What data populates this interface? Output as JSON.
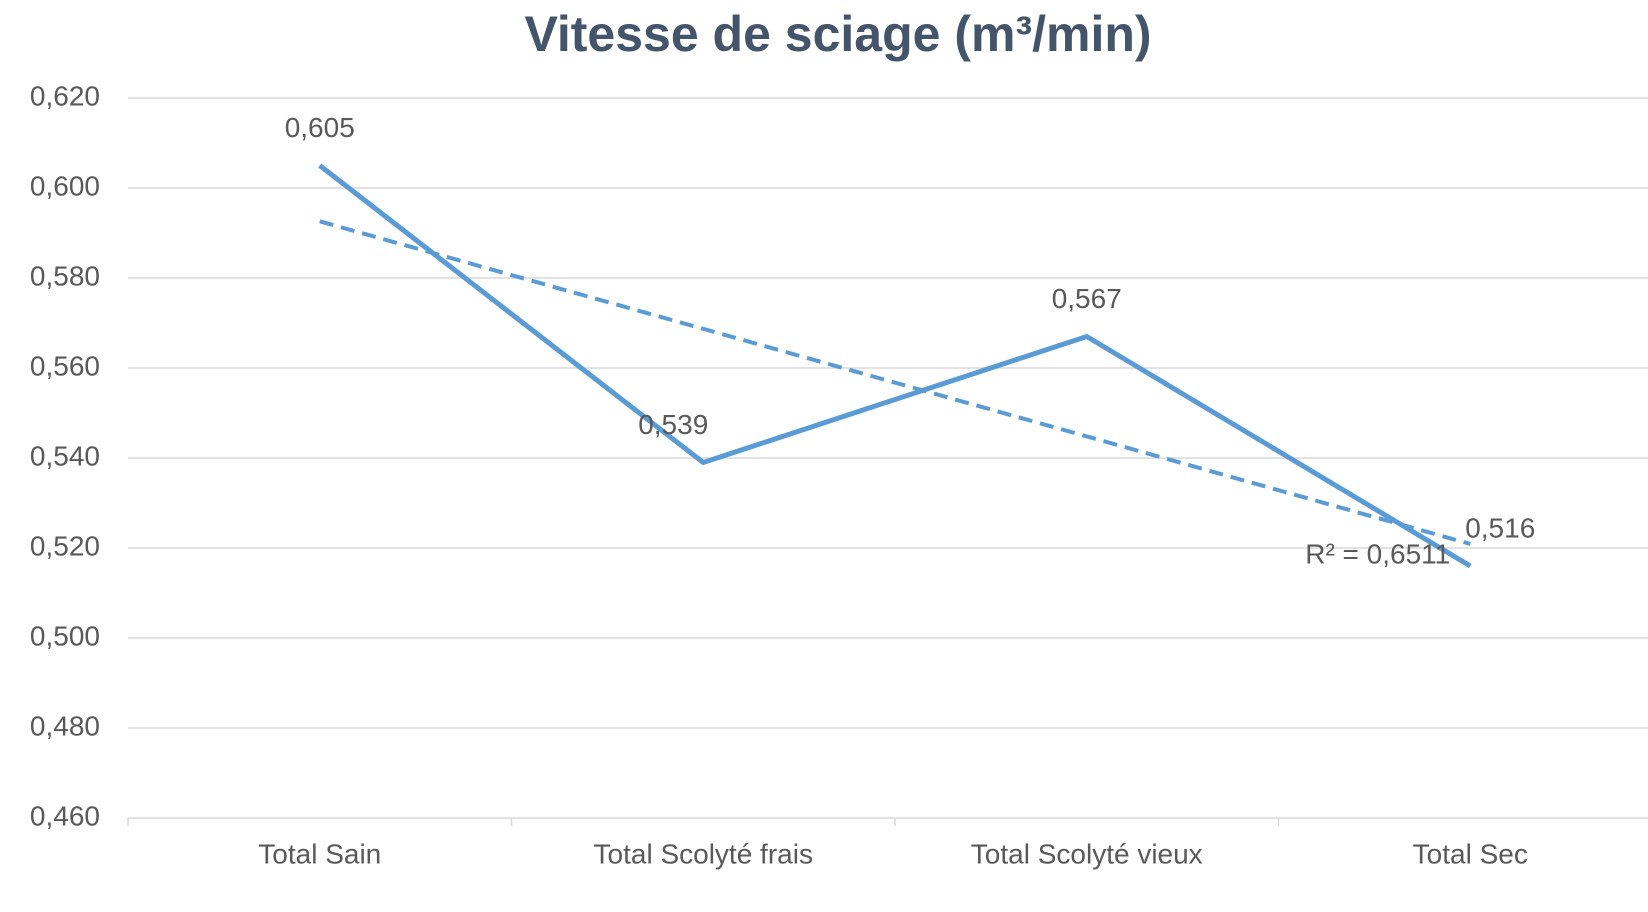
{
  "chart_data": {
    "type": "line",
    "title": "Vitesse de sciage (m³/min)",
    "categories": [
      "Total Sain",
      "Total Scolyté frais",
      "Total Scolyté vieux",
      "Total Sec"
    ],
    "values": [
      0.605,
      0.539,
      0.567,
      0.516
    ],
    "value_labels": [
      "0,605",
      "0,539",
      "0,567",
      "0,516"
    ],
    "color": "#5b9bd5",
    "ylim": [
      0.46,
      0.62
    ],
    "yticks": [
      {
        "value": 0.46,
        "label": "0,460"
      },
      {
        "value": 0.48,
        "label": "0,480"
      },
      {
        "value": 0.5,
        "label": "0,500"
      },
      {
        "value": 0.52,
        "label": "0,520"
      },
      {
        "value": 0.54,
        "label": "0,540"
      },
      {
        "value": 0.56,
        "label": "0,560"
      },
      {
        "value": 0.58,
        "label": "0,580"
      },
      {
        "value": 0.6,
        "label": "0,600"
      },
      {
        "value": 0.62,
        "label": "0,620"
      }
    ],
    "grid": true,
    "trendline": {
      "start": 0.5926,
      "end": 0.5209,
      "label": "R² = 0,6511"
    }
  }
}
